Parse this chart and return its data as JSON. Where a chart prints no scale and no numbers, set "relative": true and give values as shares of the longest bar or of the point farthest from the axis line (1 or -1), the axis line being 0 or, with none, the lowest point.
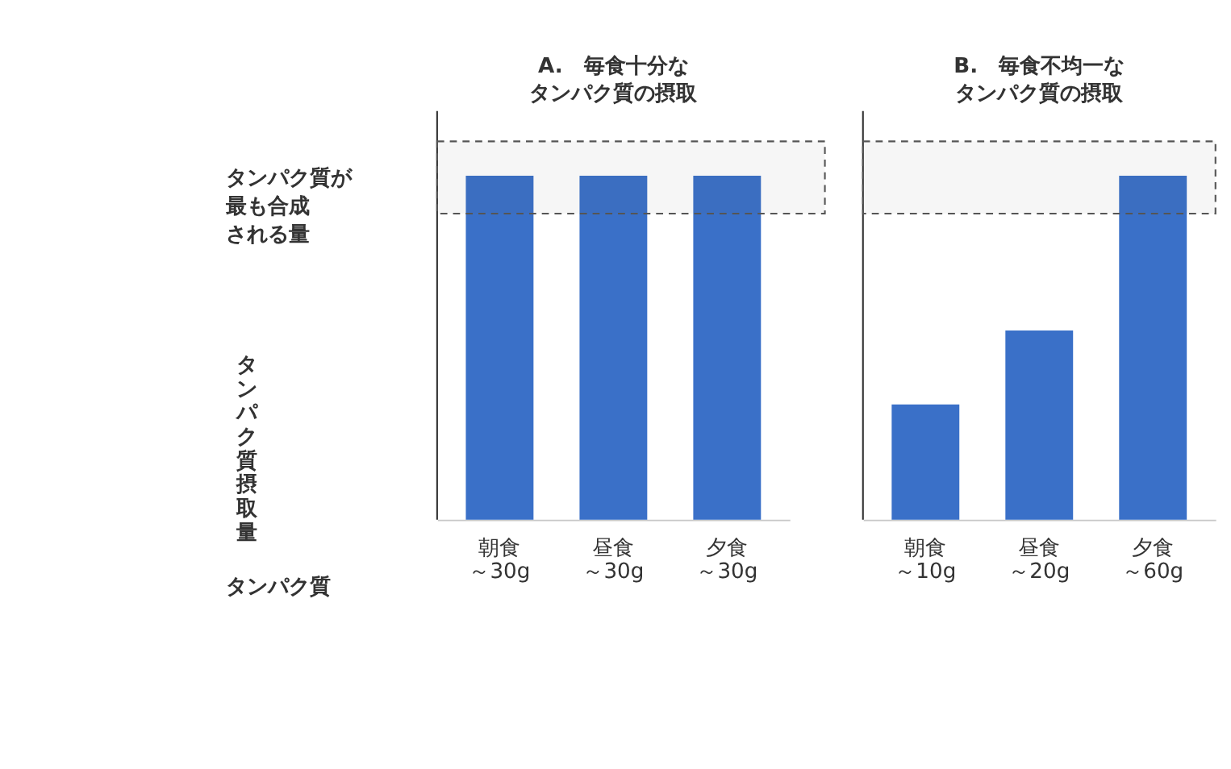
{
  "chart_data": [
    {
      "type": "bar",
      "title": "A.　毎食十分なタンパク質の摂取",
      "ylabel": "タンパク質摂取量",
      "relative": true,
      "grid": false,
      "tick_labels": "x",
      "categories": [
        "朝食～30g",
        "昼食～30g",
        "夕食～30g"
      ],
      "series": [
        {
          "color": "#3a70c8",
          "values": [
            1,
            1,
            1
          ]
        }
      ],
      "bands": [
        {
          "axis": "y",
          "from": 0.89,
          "to": 1.1,
          "label": "タンパク質が最も合成される量",
          "color": "#555555"
        }
      ],
      "annotations": [
        "タンパク質"
      ]
    },
    {
      "type": "bar",
      "title": "B.　毎食不均一なタンパク質の摂取",
      "relative": true,
      "grid": false,
      "tick_labels": "x",
      "categories": [
        "朝食～10g",
        "昼食～20g",
        "夕食～60g"
      ],
      "series": [
        {
          "color": "#3a70c8",
          "values": [
            0.335,
            0.55,
            1
          ]
        }
      ],
      "bands": [
        {
          "axis": "y",
          "from": 0.89,
          "to": 1.1,
          "color": "#555555"
        }
      ]
    }
  ]
}
